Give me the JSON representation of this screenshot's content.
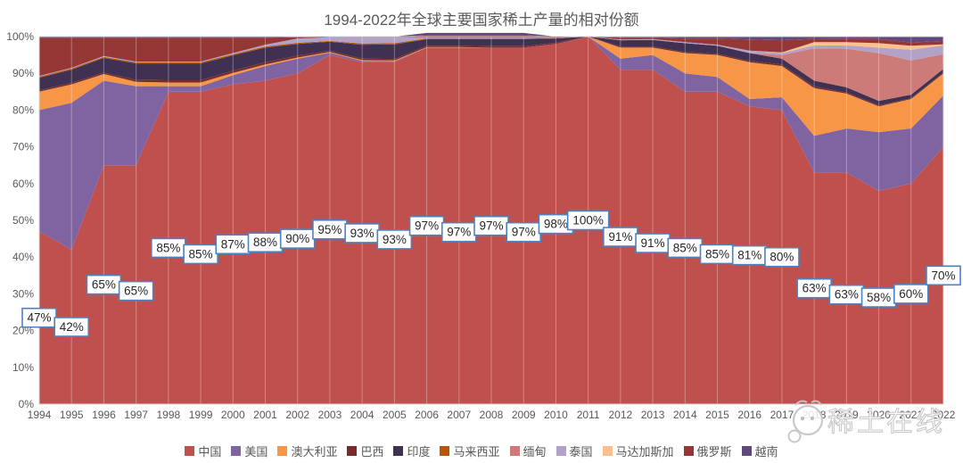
{
  "chart_data": {
    "type": "area",
    "stacked_percent": true,
    "title": "1994-2022年全球主要国家稀土产量的相对份额",
    "x": [
      1994,
      1995,
      1996,
      1997,
      1998,
      1999,
      2000,
      2001,
      2002,
      2003,
      2004,
      2005,
      2006,
      2007,
      2008,
      2009,
      2010,
      2011,
      2012,
      2013,
      2014,
      2015,
      2016,
      2017,
      2018,
      2019,
      2020,
      2021,
      2022
    ],
    "y_ticks": [
      "0%",
      "10%",
      "20%",
      "30%",
      "40%",
      "50%",
      "60%",
      "70%",
      "80%",
      "90%",
      "100%"
    ],
    "ylim": [
      0,
      100
    ],
    "grid": "vertical",
    "legend_position": "bottom",
    "china_share_labels": [
      "47%",
      "42%",
      "65%",
      "65%",
      "85%",
      "85%",
      "87%",
      "88%",
      "90%",
      "95%",
      "93%",
      "93%",
      "97%",
      "97%",
      "97%",
      "97%",
      "98%",
      "100%",
      "91%",
      "91%",
      "85%",
      "85%",
      "81%",
      "80%",
      "63%",
      "63%",
      "58%",
      "60%",
      "70%"
    ],
    "series": [
      {
        "name": "中国",
        "key": "china",
        "color": "#C0504D",
        "values": [
          47,
          42,
          65,
          65,
          85,
          85,
          87,
          88,
          90,
          95,
          93,
          93,
          97,
          97,
          97,
          97,
          98,
          100,
          91,
          91,
          85,
          85,
          81,
          80,
          63,
          63,
          58,
          60,
          70
        ]
      },
      {
        "name": "美国",
        "key": "usa",
        "color": "#8064A2",
        "values": [
          33,
          40,
          23,
          21.5,
          1.5,
          1.5,
          2.5,
          4,
          4,
          0.6,
          0.4,
          0.3,
          0,
          0,
          0,
          0,
          0,
          0,
          3,
          4,
          5,
          4,
          2,
          3.5,
          10,
          12,
          16,
          15,
          14
        ]
      },
      {
        "name": "澳大利亚",
        "key": "australia",
        "color": "#F79646",
        "values": [
          5,
          5,
          1.8,
          1.2,
          1,
          1,
          0.6,
          0.4,
          0.3,
          0.2,
          0.2,
          0.2,
          0.1,
          0.1,
          0,
          0,
          0,
          0,
          3,
          2,
          5.5,
          6,
          10,
          8.5,
          13,
          9.5,
          7,
          8,
          6
        ]
      },
      {
        "name": "巴西",
        "key": "brazil",
        "color": "#772C2A",
        "values": [
          0.4,
          0.4,
          0.4,
          0.5,
          0.6,
          0.6,
          0.6,
          0.6,
          0.5,
          0.4,
          0.4,
          0.4,
          0.4,
          0.4,
          0.4,
          0.4,
          0.3,
          0,
          0.3,
          0.3,
          0.3,
          0.3,
          0.4,
          0.4,
          0.4,
          0.3,
          0.3,
          0.2,
          0.2
        ]
      },
      {
        "name": "印度",
        "key": "india",
        "color": "#403152",
        "values": [
          3.4,
          3.6,
          4,
          4.5,
          4.6,
          4.6,
          4.2,
          4,
          3.2,
          2.4,
          3.8,
          4,
          1.8,
          1.8,
          1.9,
          1.9,
          1.2,
          0,
          1.7,
          1.8,
          2.4,
          2.2,
          2.1,
          1.6,
          1.6,
          1.4,
          1.2,
          1,
          1
        ]
      },
      {
        "name": "马来西亚",
        "key": "malaysia",
        "color": "#B65708",
        "values": [
          0.3,
          0.3,
          0.3,
          0.3,
          0.3,
          0.3,
          0.3,
          0.3,
          0.3,
          0.2,
          0.3,
          0.3,
          0.2,
          0.2,
          0.2,
          0.2,
          0.1,
          0,
          0,
          0,
          0,
          0,
          0,
          0,
          0,
          0,
          0,
          0,
          0
        ]
      },
      {
        "name": "缅甸",
        "key": "myanmar",
        "color": "#CC7B78",
        "values": [
          0,
          0,
          0,
          0,
          0,
          0,
          0,
          0,
          0,
          0,
          0,
          0,
          0,
          0,
          0,
          0,
          0,
          0,
          0,
          0,
          0,
          0,
          0,
          1,
          8.8,
          10.5,
          13,
          9.3,
          4
        ]
      },
      {
        "name": "泰国",
        "key": "thailand",
        "color": "#B3A2C7",
        "values": [
          0.2,
          0.2,
          0.2,
          0.2,
          0.2,
          0.2,
          0.3,
          0.5,
          1.2,
          1,
          1.7,
          1.6,
          0.2,
          0.2,
          0.2,
          0.2,
          0.1,
          0,
          0.2,
          0.2,
          0.3,
          0.3,
          0.7,
          0.5,
          0.8,
          0.9,
          1.5,
          2.9,
          2.4
        ]
      },
      {
        "name": "马达加斯加",
        "key": "madagascar",
        "color": "#FAC08F",
        "values": [
          0,
          0,
          0,
          0,
          0,
          0,
          0,
          0,
          0,
          0,
          0,
          0,
          0,
          0,
          0,
          0,
          0,
          0,
          0,
          0,
          0,
          0,
          0,
          0.2,
          0.9,
          0.9,
          1.2,
          1.1,
          0.3
        ]
      },
      {
        "name": "俄罗斯",
        "key": "russia",
        "color": "#953734",
        "values": [
          10.4,
          8.2,
          5,
          6.5,
          6.5,
          6.5,
          4.2,
          1.9,
          0.3,
          0.1,
          0.1,
          0.1,
          0.7,
          0.7,
          0.7,
          0.7,
          0.2,
          0,
          0.5,
          0.4,
          1,
          1.7,
          3,
          3.3,
          0.9,
          0.8,
          1.1,
          0.9,
          0.9
        ]
      },
      {
        "name": "越南",
        "key": "vietnam",
        "color": "#5F497A",
        "values": [
          0.3,
          0.3,
          0.3,
          0.3,
          0.3,
          0.3,
          0.3,
          0.3,
          0.2,
          0.1,
          0.1,
          0.1,
          0.6,
          0.6,
          0.6,
          0.6,
          0.1,
          0,
          0.3,
          0.3,
          0.5,
          0.5,
          0.8,
          1,
          0.6,
          0.7,
          0.7,
          1.6,
          1.2
        ]
      }
    ]
  },
  "colors": {
    "axis_text": "#595959",
    "title_text": "#595959",
    "plot_border": "#D9D9D9",
    "grid_overlay": "rgba(255,255,255,0.32)",
    "label_box_border": "#4F81BD",
    "label_box_fill": "#FFFFFF",
    "label_text": "#262626"
  },
  "watermark": {
    "text": "稀土在线"
  }
}
